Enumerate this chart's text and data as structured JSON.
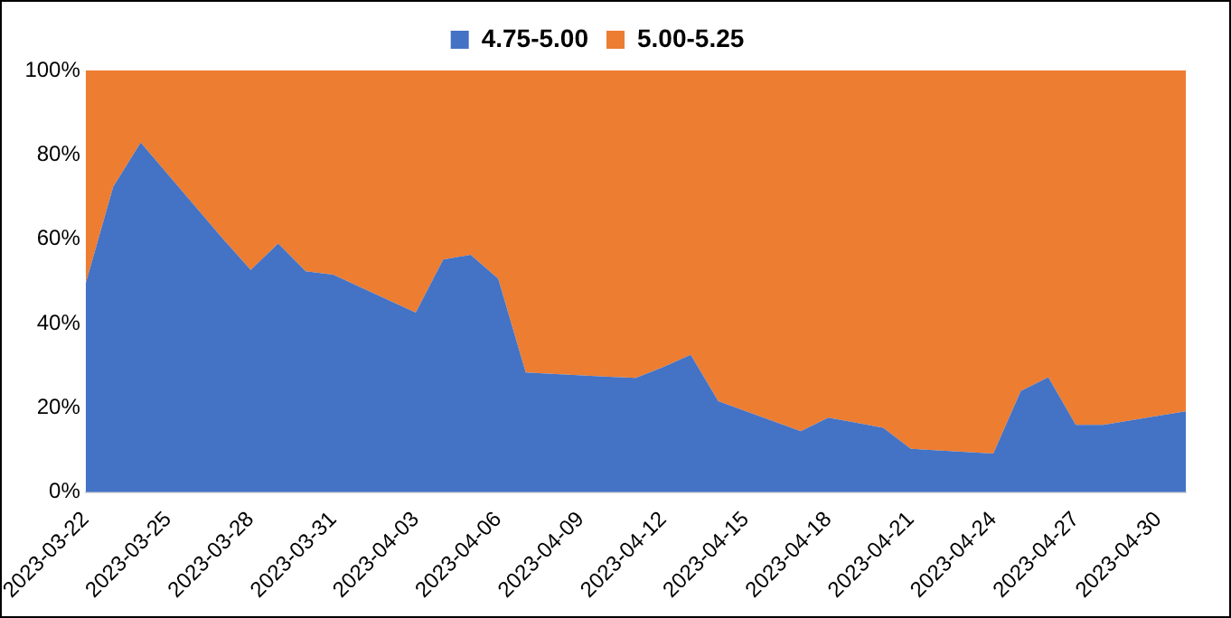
{
  "chart_data": {
    "type": "area",
    "stacked": true,
    "x": [
      "2023-03-22",
      "2023-03-23",
      "2023-03-24",
      "2023-03-27",
      "2023-03-28",
      "2023-03-29",
      "2023-03-30",
      "2023-03-31",
      "2023-04-03",
      "2023-04-04",
      "2023-04-05",
      "2023-04-06",
      "2023-04-07",
      "2023-04-10",
      "2023-04-11",
      "2023-04-12",
      "2023-04-13",
      "2023-04-14",
      "2023-04-17",
      "2023-04-18",
      "2023-04-19",
      "2023-04-20",
      "2023-04-21",
      "2023-04-24",
      "2023-04-25",
      "2023-04-26",
      "2023-04-27",
      "2023-04-28",
      "2023-05-01"
    ],
    "series": [
      {
        "name": "4.75-5.00",
        "color": "#4472c4",
        "values": [
          49.5,
          72.4,
          82.9,
          60,
          52.7,
          59,
          52.4,
          51.6,
          42.6,
          55.2,
          56.3,
          50.6,
          28.4,
          27.4,
          27.1,
          29.7,
          32.6,
          21.6,
          14.5,
          17.7,
          16.5,
          15.3,
          10.3,
          9.2,
          24,
          27.3,
          16,
          16,
          19.2
        ]
      },
      {
        "name": "5.00-5.25",
        "color": "#ed7d31",
        "values": [
          50.5,
          27.6,
          17.1,
          40,
          47.3,
          41,
          47.6,
          48.4,
          57.4,
          44.8,
          43.7,
          49.4,
          71.6,
          72.6,
          72.9,
          70.3,
          67.4,
          78.4,
          85.5,
          82.3,
          83.5,
          84.7,
          89.7,
          90.8,
          76,
          72.7,
          84,
          84,
          80.8
        ]
      }
    ],
    "xlim": [
      "2023-03-22",
      "2023-05-01"
    ],
    "xticks": [
      "2023-03-22",
      "2023-03-25",
      "2023-03-28",
      "2023-03-31",
      "2023-04-03",
      "2023-04-06",
      "2023-04-09",
      "2023-04-12",
      "2023-04-15",
      "2023-04-18",
      "2023-04-21",
      "2023-04-24",
      "2023-04-27",
      "2023-04-30"
    ],
    "ylim": [
      0,
      100
    ],
    "yticks": [
      {
        "value": 0,
        "label": "0%"
      },
      {
        "value": 20,
        "label": "20%"
      },
      {
        "value": 40,
        "label": "40%"
      },
      {
        "value": 60,
        "label": "60%"
      },
      {
        "value": 80,
        "label": "80%"
      },
      {
        "value": 100,
        "label": "100%"
      }
    ],
    "grid": false,
    "legend": "top"
  }
}
